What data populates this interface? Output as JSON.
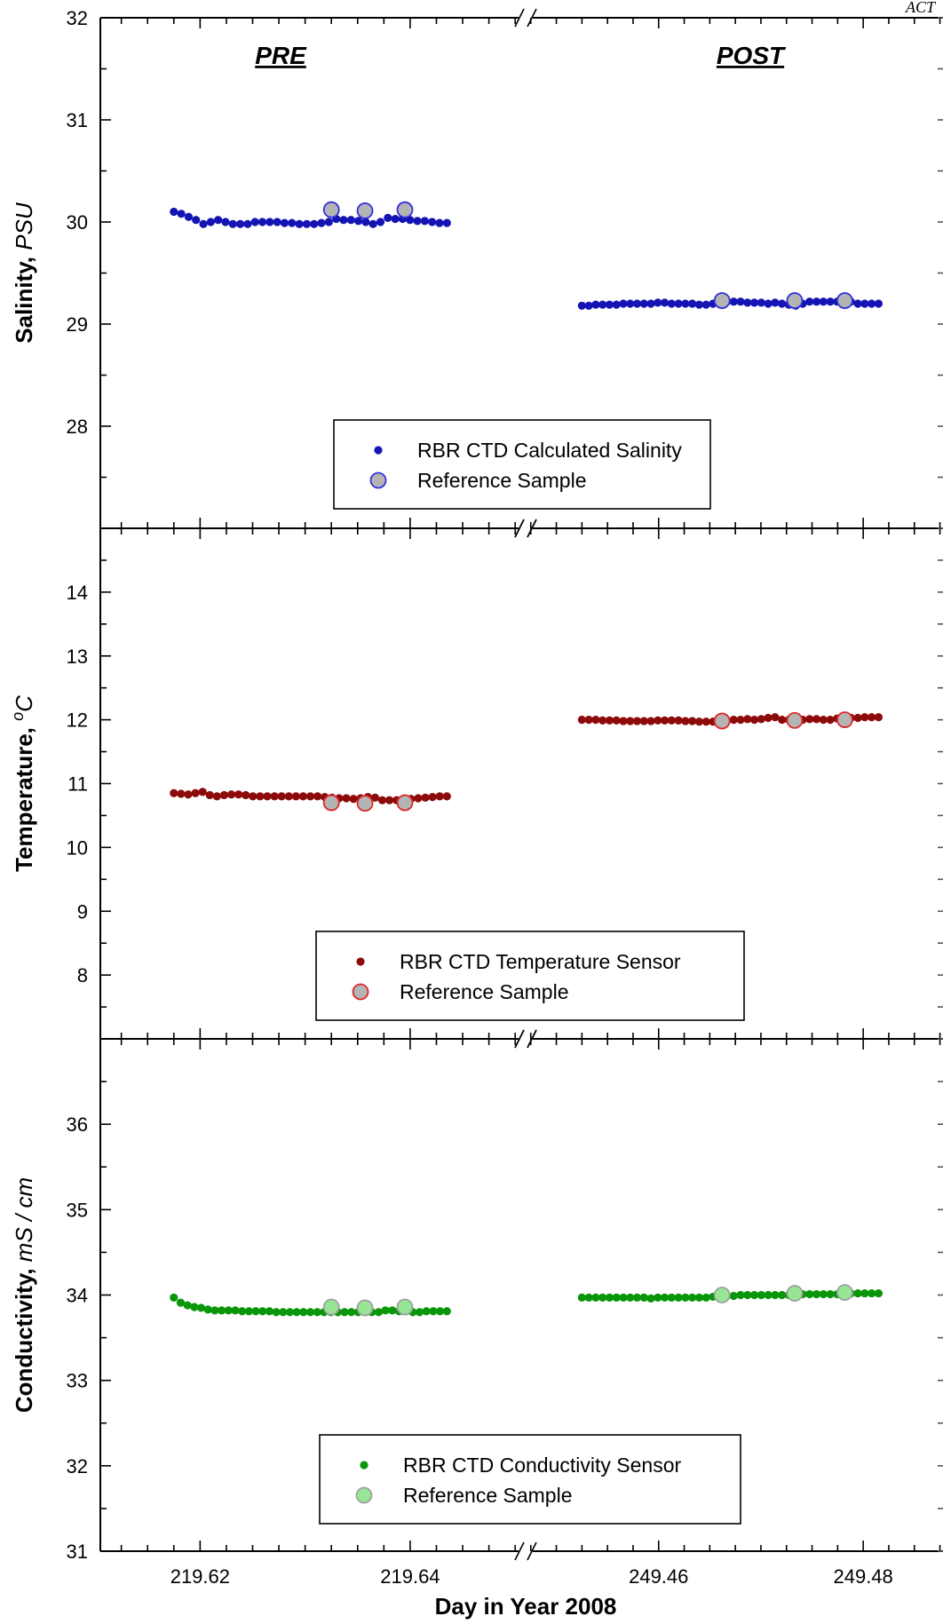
{
  "corner_text": "ACT",
  "chart_data": [
    {
      "type": "scatter",
      "panel": "salinity",
      "ylabel": "Salinity, ",
      "ylabel_unit": "PSU",
      "ylim": [
        27,
        32
      ],
      "yticks": [
        28,
        29,
        30,
        31,
        32
      ],
      "period_labels": [
        "PRE",
        "POST"
      ],
      "legend": {
        "placement": "bottom-center",
        "entries": [
          "RBR CTD Calculated Salinity",
          "Reference Sample"
        ]
      },
      "colors": {
        "series": "#1414b4",
        "ref_fill": "#b4b4b4",
        "ref_edge": "#3232dc"
      },
      "pre_series": [
        30.1,
        30.08,
        30.05,
        30.02,
        29.98,
        30.0,
        30.02,
        30.0,
        29.98,
        29.98,
        29.98,
        30.0,
        30.0,
        30.0,
        30.0,
        29.99,
        29.99,
        29.98,
        29.98,
        29.98,
        29.99,
        30.0,
        30.03,
        30.02,
        30.02,
        30.01,
        30.0,
        29.98,
        30.0,
        30.04,
        30.03,
        30.03,
        30.02,
        30.01,
        30.01,
        30.0,
        29.99,
        29.99
      ],
      "post_series": [
        29.18,
        29.18,
        29.19,
        29.19,
        29.19,
        29.19,
        29.2,
        29.2,
        29.2,
        29.2,
        29.2,
        29.21,
        29.21,
        29.2,
        29.2,
        29.2,
        29.2,
        29.19,
        29.19,
        29.2,
        29.21,
        29.22,
        29.22,
        29.22,
        29.21,
        29.21,
        29.21,
        29.2,
        29.21,
        29.2,
        29.19,
        29.18,
        29.2,
        29.22,
        29.22,
        29.22,
        29.22,
        29.22,
        29.21,
        29.22,
        29.2,
        29.2,
        29.2,
        29.2
      ],
      "pre_reference": [
        {
          "x": 219.6325,
          "y": 30.12
        },
        {
          "x": 219.6357,
          "y": 30.11
        },
        {
          "x": 219.6395,
          "y": 30.12
        }
      ],
      "post_reference": [
        {
          "x": 249.4662,
          "y": 29.23
        },
        {
          "x": 249.4733,
          "y": 29.23
        },
        {
          "x": 249.4782,
          "y": 29.23
        }
      ]
    },
    {
      "type": "scatter",
      "panel": "temperature",
      "ylabel": "Temperature, ",
      "ylabel_unit": "°C",
      "ylim": [
        7,
        15
      ],
      "yticks": [
        8,
        9,
        10,
        11,
        12,
        13,
        14
      ],
      "legend": {
        "placement": "bottom-center",
        "entries": [
          "RBR CTD Temperature Sensor",
          "Reference Sample"
        ]
      },
      "colors": {
        "series": "#8c0a0a",
        "ref_fill": "#b4b4b4",
        "ref_edge": "#dc2828"
      },
      "pre_series": [
        10.85,
        10.84,
        10.83,
        10.85,
        10.87,
        10.82,
        10.8,
        10.82,
        10.83,
        10.83,
        10.82,
        10.8,
        10.8,
        10.8,
        10.8,
        10.8,
        10.8,
        10.8,
        10.8,
        10.8,
        10.8,
        10.79,
        10.78,
        10.77,
        10.77,
        10.76,
        10.77,
        10.79,
        10.78,
        10.74,
        10.74,
        10.74,
        10.75,
        10.76,
        10.77,
        10.78,
        10.79,
        10.8,
        10.8
      ],
      "post_series": [
        12.0,
        12.0,
        12.0,
        11.99,
        11.99,
        11.99,
        11.98,
        11.98,
        11.98,
        11.98,
        11.98,
        11.99,
        11.99,
        11.99,
        11.99,
        11.98,
        11.98,
        11.97,
        11.97,
        11.97,
        11.98,
        11.98,
        12.0,
        12.0,
        12.01,
        12.0,
        12.01,
        12.03,
        12.04,
        12.0,
        12.0,
        12.0,
        12.0,
        12.01,
        12.01,
        12.0,
        12.0,
        12.02,
        12.02,
        12.03,
        12.03,
        12.04,
        12.04,
        12.04
      ],
      "pre_reference": [
        {
          "x": 219.6325,
          "y": 10.7
        },
        {
          "x": 219.6357,
          "y": 10.69
        },
        {
          "x": 219.6395,
          "y": 10.7
        }
      ],
      "post_reference": [
        {
          "x": 249.4662,
          "y": 11.98
        },
        {
          "x": 249.4733,
          "y": 11.99
        },
        {
          "x": 249.4782,
          "y": 12.0
        }
      ]
    },
    {
      "type": "scatter",
      "panel": "conductivity",
      "ylabel": "Conductivity, ",
      "ylabel_unit": "mS / cm",
      "ylim": [
        31,
        37
      ],
      "yticks": [
        31,
        32,
        33,
        34,
        35,
        36
      ],
      "legend": {
        "placement": "bottom-center",
        "entries": [
          "RBR CTD Conductivity Sensor",
          "Reference Sample"
        ]
      },
      "colors": {
        "series": "#0a960a",
        "ref_fill": "#96e696",
        "ref_edge": "#a0a0a0"
      },
      "pre_series": [
        33.97,
        33.91,
        33.88,
        33.86,
        33.85,
        33.83,
        33.82,
        33.82,
        33.82,
        33.82,
        33.81,
        33.81,
        33.81,
        33.81,
        33.81,
        33.8,
        33.8,
        33.8,
        33.8,
        33.8,
        33.8,
        33.8,
        33.8,
        33.8,
        33.8,
        33.8,
        33.8,
        33.8,
        33.8,
        33.8,
        33.8,
        33.82,
        33.82,
        33.81,
        33.81,
        33.8,
        33.8,
        33.81,
        33.81,
        33.81,
        33.81
      ],
      "post_series": [
        33.97,
        33.97,
        33.97,
        33.97,
        33.97,
        33.97,
        33.97,
        33.97,
        33.97,
        33.97,
        33.96,
        33.97,
        33.97,
        33.97,
        33.97,
        33.97,
        33.97,
        33.97,
        33.97,
        33.98,
        33.98,
        33.99,
        33.99,
        34.0,
        34.0,
        34.0,
        34.0,
        34.0,
        34.0,
        34.0,
        34.0,
        34.01,
        34.01,
        34.01,
        34.01,
        34.01,
        34.01,
        34.01,
        34.02,
        34.02,
        34.02,
        34.02,
        34.02,
        34.02
      ],
      "pre_reference": [
        {
          "x": 219.6325,
          "y": 33.86
        },
        {
          "x": 219.6357,
          "y": 33.85
        },
        {
          "x": 219.6395,
          "y": 33.86
        }
      ],
      "post_reference": [
        {
          "x": 249.4662,
          "y": 34.0
        },
        {
          "x": 249.4733,
          "y": 34.02
        },
        {
          "x": 249.4782,
          "y": 34.03
        }
      ]
    }
  ],
  "x_axis": {
    "xlabel": "Day in Year 2008",
    "pre_xlim": [
      219.6105,
      219.651
    ],
    "post_xlim": [
      249.447,
      249.4878
    ],
    "pre_x_start": 219.6175,
    "pre_x_end": 219.6435,
    "post_x_start": 249.4525,
    "post_x_end": 249.4815,
    "pre_ticks": [
      219.62,
      219.64
    ],
    "post_ticks": [
      249.46,
      249.48
    ],
    "tick_labels": [
      "219.62",
      "219.64",
      "249.46",
      "249.48"
    ],
    "pre_minor_step": 0.0025,
    "post_minor_step": 0.0025
  }
}
